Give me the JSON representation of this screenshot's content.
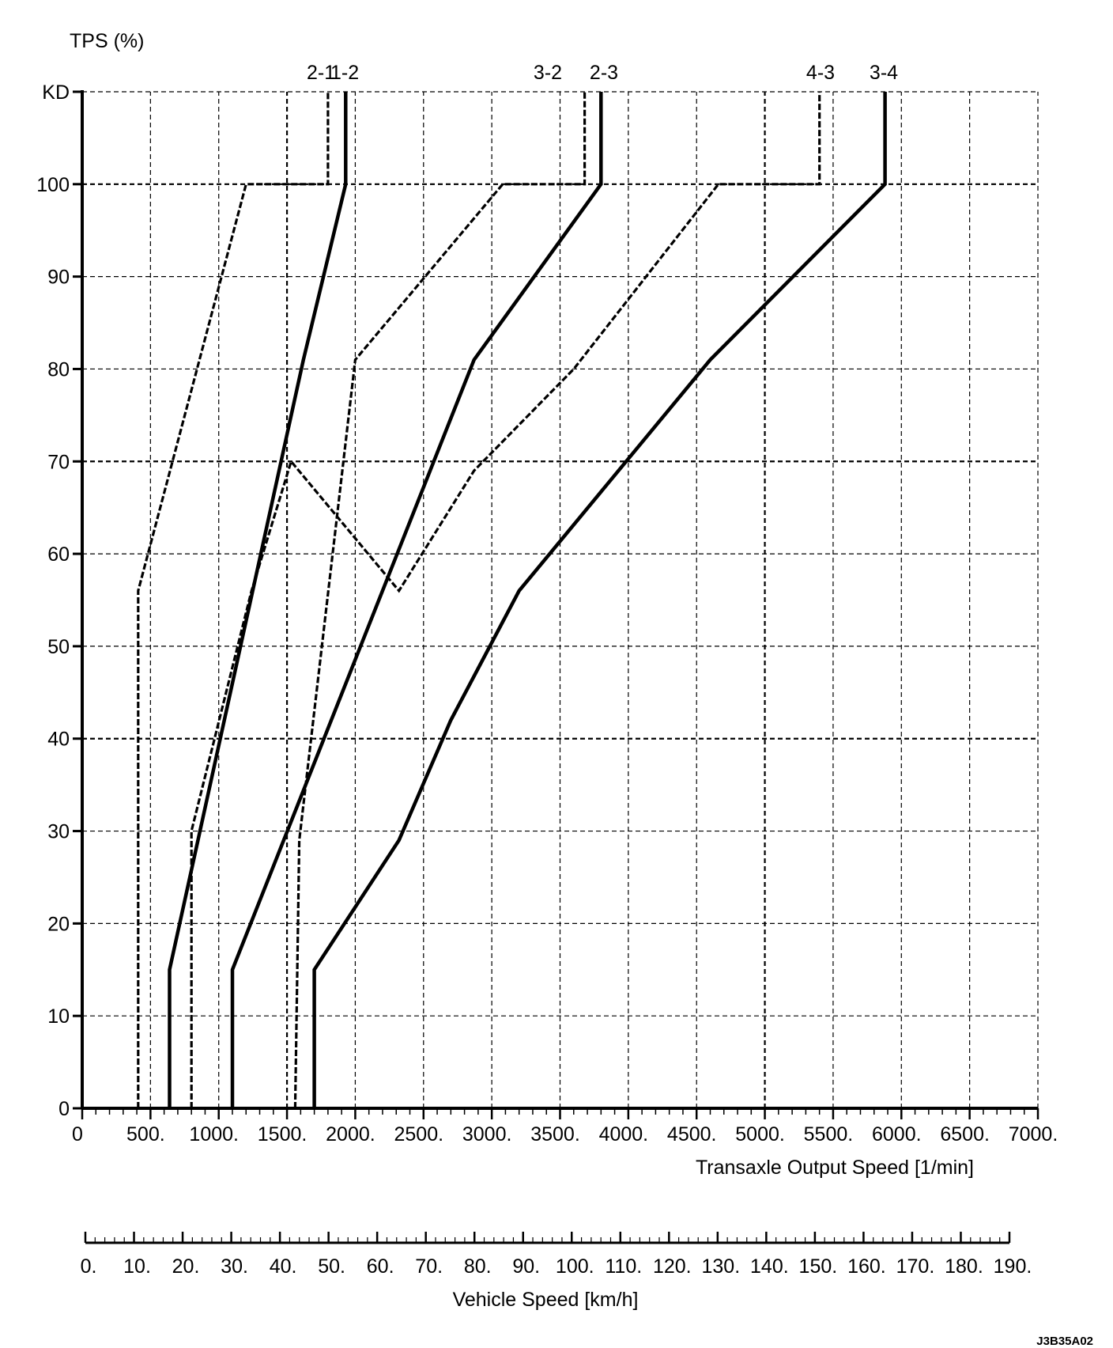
{
  "chart_data": {
    "type": "line",
    "ylabel": "TPS (%)",
    "xlabel": "Transaxle Output Speed [1/min]",
    "x2label": "Vehicle Speed [km/h]",
    "figure_ref": "J3B35A02",
    "y_ticks": [
      "0",
      "10",
      "20",
      "30",
      "40",
      "50",
      "60",
      "70",
      "80",
      "90",
      "100",
      "KD"
    ],
    "x_ticks": [
      "0",
      "500.",
      "1000.",
      "1500.",
      "2000.",
      "2500.",
      "3000.",
      "3500.",
      "4000.",
      "4500.",
      "5000.",
      "5500.",
      "6000.",
      "6500.",
      "7000."
    ],
    "x2_ticks": [
      "0.",
      "10.",
      "20.",
      "30.",
      "40.",
      "50.",
      "60.",
      "70.",
      "80.",
      "90.",
      "100.",
      "110.",
      "120.",
      "130.",
      "140.",
      "150.",
      "160.",
      "170.",
      "180.",
      "190."
    ],
    "xlim": [
      0,
      7000
    ],
    "ylim": [
      0,
      110
    ],
    "x2lim": [
      0,
      190
    ],
    "grid": true,
    "series": [
      {
        "name": "2-1",
        "style": "dashed",
        "points": [
          [
            410,
            0
          ],
          [
            410,
            56
          ],
          [
            1200,
            100
          ],
          [
            1800,
            100
          ],
          [
            1800,
            110
          ]
        ]
      },
      {
        "name": "1-2",
        "style": "solid",
        "points": [
          [
            640,
            0
          ],
          [
            640,
            15
          ],
          [
            1620,
            81
          ],
          [
            1930,
            100
          ],
          [
            1930,
            110
          ]
        ]
      },
      {
        "name": "3-2",
        "style": "dashed",
        "points": [
          [
            1560,
            0
          ],
          [
            1590,
            29
          ],
          [
            2000,
            81
          ],
          [
            3080,
            100
          ],
          [
            3680,
            100
          ],
          [
            3680,
            110
          ]
        ]
      },
      {
        "name": "2-3",
        "style": "solid",
        "points": [
          [
            1100,
            0
          ],
          [
            1100,
            15
          ],
          [
            2870,
            81
          ],
          [
            3800,
            100
          ],
          [
            3800,
            110
          ]
        ]
      },
      {
        "name": "4-3",
        "style": "dashed",
        "points": [
          [
            800,
            0
          ],
          [
            800,
            30
          ],
          [
            1240,
            56
          ],
          [
            1530,
            70
          ],
          [
            2320,
            56
          ],
          [
            2870,
            69
          ],
          [
            3600,
            80
          ],
          [
            4660,
            100
          ],
          [
            5400,
            100
          ],
          [
            5400,
            110
          ]
        ]
      },
      {
        "name": "3-4",
        "style": "solid",
        "points": [
          [
            1700,
            0
          ],
          [
            1700,
            15
          ],
          [
            2320,
            29
          ],
          [
            2700,
            42
          ],
          [
            3200,
            56
          ],
          [
            4600,
            81
          ],
          [
            5880,
            100
          ],
          [
            5880,
            110
          ]
        ]
      }
    ]
  }
}
